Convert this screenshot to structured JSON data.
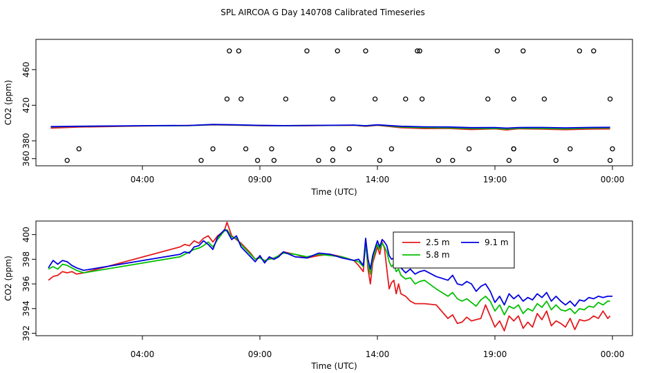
{
  "figure_title": "SPL AIRCOA G  Day 140708  Calibrated Timeseries",
  "chart_data": [
    {
      "type": "line",
      "panel": "top",
      "xlabel": "Time (UTC)",
      "ylabel": "CO2 (ppm)",
      "xlim": [
        0.0,
        24.0
      ],
      "ylim": [
        352,
        494
      ],
      "xticks": [
        {
          "x": 4,
          "label": "04:00"
        },
        {
          "x": 9,
          "label": "09:00"
        },
        {
          "x": 14,
          "label": "14:00"
        },
        {
          "x": 19,
          "label": "19:00"
        },
        {
          "x": 24,
          "label": "00:00"
        }
      ],
      "yticks": [
        360,
        380,
        420,
        460
      ],
      "series": [
        {
          "name": "2.5 m",
          "color": "#e41a1c",
          "x": [
            0.1,
            1.3,
            4,
            6,
            7.0,
            8,
            9,
            10,
            11,
            12,
            13,
            13.5,
            14,
            15,
            16,
            17,
            18,
            19,
            19.5,
            20,
            21,
            22,
            23,
            23.9
          ],
          "y": [
            394.3,
            395.5,
            396.8,
            397.2,
            398.0,
            397.6,
            397.0,
            396.9,
            397.0,
            397.3,
            397.5,
            396.4,
            397.5,
            394.8,
            393.8,
            394.0,
            392.7,
            393.5,
            392.3,
            393.6,
            393.2,
            392.6,
            393.3,
            393.4
          ]
        },
        {
          "name": "5.8 m",
          "color": "#00c000",
          "x": [
            0.1,
            1.3,
            4,
            6,
            7.0,
            8,
            9,
            10,
            11,
            12,
            13,
            13.5,
            14,
            15,
            16,
            17,
            18,
            19,
            19.5,
            20,
            21,
            22,
            23,
            23.9
          ],
          "y": [
            395.8,
            396.2,
            396.9,
            397.1,
            398.2,
            397.8,
            397.2,
            397.0,
            397.2,
            397.4,
            397.6,
            396.8,
            397.8,
            395.6,
            394.9,
            394.6,
            393.9,
            394.0,
            393.2,
            394.2,
            394.0,
            393.5,
            394.3,
            394.5
          ]
        },
        {
          "name": "9.1 m",
          "color": "#0000e0",
          "x": [
            0.1,
            1.3,
            4,
            6,
            7.0,
            8,
            9,
            10,
            11,
            12,
            13,
            13.5,
            14,
            15,
            16,
            17,
            18,
            19,
            19.5,
            20,
            21,
            22,
            23,
            23.9
          ],
          "y": [
            396.0,
            396.4,
            397.0,
            397.3,
            398.4,
            398.0,
            397.4,
            397.1,
            397.3,
            397.5,
            397.7,
            397.0,
            398.0,
            396.4,
            395.8,
            395.6,
            394.8,
            395.0,
            394.3,
            395.0,
            395.1,
            394.6,
            395.1,
            395.2
          ]
        }
      ],
      "outliers": {
        "x": [
          0.8,
          1.3,
          6.5,
          7.0,
          7.6,
          7.7,
          8.1,
          8.2,
          8.4,
          8.9,
          9.5,
          9.6,
          10.1,
          11.0,
          11.5,
          12.1,
          12.1,
          12.1,
          12.3,
          12.8,
          13.5,
          13.9,
          14.1,
          14.6,
          15.2,
          15.7,
          15.8,
          15.9,
          16.6,
          17.2,
          17.9,
          18.7,
          19.1,
          19.6,
          19.8,
          19.8,
          19.8,
          20.2,
          21.1,
          21.6,
          22.2,
          22.6,
          23.2,
          23.9,
          23.9,
          24.0
        ],
        "y": [
          358,
          371,
          358,
          371,
          427,
          481,
          481,
          427,
          371,
          358,
          371,
          358,
          427,
          481,
          358,
          371,
          358,
          427,
          481,
          371,
          481,
          427,
          358,
          371,
          427,
          481,
          481,
          427,
          358,
          358,
          371,
          427,
          481,
          358,
          371,
          371,
          427,
          481,
          427,
          358,
          371,
          481,
          481,
          358,
          427,
          371
        ]
      }
    },
    {
      "type": "line",
      "panel": "bottom",
      "xlabel": "Time (UTC)",
      "ylabel": "CO2 (ppm)",
      "xlim": [
        0.0,
        24.0
      ],
      "ylim": [
        391.8,
        401.1
      ],
      "xticks": [
        {
          "x": 4,
          "label": "04:00"
        },
        {
          "x": 9,
          "label": "09:00"
        },
        {
          "x": 14,
          "label": "14:00"
        },
        {
          "x": 19,
          "label": "19:00"
        },
        {
          "x": 24,
          "label": "00:00"
        }
      ],
      "yticks": [
        {
          "v": 392,
          "label": "392"
        },
        {
          "v": 394,
          "label": "394"
        },
        {
          "v": 396,
          "label": "396"
        },
        {
          "v": 398,
          "label": "398"
        },
        {
          "v": 400,
          "label": "400"
        }
      ],
      "legend": {
        "placement": "top-right-inset",
        "entries": [
          "2.5 m",
          "9.1 m",
          "5.8 m"
        ]
      },
      "series": [
        {
          "name": "2.5 m",
          "color": "#e41a1c",
          "x": [
            0.0,
            0.2,
            0.4,
            0.6,
            0.8,
            1.0,
            1.2,
            1.5,
            5.6,
            5.8,
            6.0,
            6.2,
            6.4,
            6.6,
            6.8,
            7.0,
            7.2,
            7.4,
            7.5,
            7.6,
            7.8,
            8.0,
            8.2,
            8.4,
            8.6,
            8.8,
            9.0,
            9.2,
            9.4,
            9.6,
            9.8,
            10.0,
            10.5,
            11.0,
            11.5,
            12.0,
            12.5,
            13.0,
            13.2,
            13.4,
            13.5,
            13.6,
            13.7,
            13.8,
            14.0,
            14.1,
            14.2,
            14.3,
            14.4,
            14.5,
            14.6,
            14.7,
            14.8,
            14.9,
            15.0,
            15.2,
            15.4,
            15.6,
            15.8,
            16.0,
            16.5,
            17.0,
            17.2,
            17.4,
            17.6,
            17.8,
            18.0,
            18.2,
            18.4,
            18.6,
            18.8,
            19.0,
            19.2,
            19.4,
            19.6,
            19.8,
            20.0,
            20.2,
            20.4,
            20.6,
            20.8,
            21.0,
            21.2,
            21.4,
            21.6,
            21.8,
            22.0,
            22.2,
            22.4,
            22.6,
            22.8,
            23.0,
            23.2,
            23.4,
            23.6,
            23.8,
            23.9
          ],
          "y": [
            396.3,
            396.6,
            396.7,
            397.0,
            396.9,
            397.0,
            396.8,
            396.9,
            399.0,
            399.2,
            399.1,
            399.5,
            399.3,
            399.7,
            399.9,
            399.4,
            399.9,
            400.2,
            400.4,
            401.0,
            399.9,
            399.6,
            399.3,
            398.9,
            398.5,
            398.0,
            398.2,
            397.8,
            398.1,
            398.0,
            398.3,
            398.6,
            398.4,
            398.1,
            398.3,
            398.4,
            398.2,
            397.9,
            397.5,
            397.0,
            399.5,
            397.2,
            396.0,
            397.7,
            399.0,
            398.4,
            399.4,
            398.9,
            397.2,
            395.6,
            396.1,
            396.3,
            395.2,
            396.0,
            395.2,
            395.0,
            394.6,
            394.4,
            394.4,
            394.4,
            394.3,
            393.2,
            393.5,
            392.8,
            392.9,
            393.3,
            393.0,
            393.1,
            393.2,
            394.3,
            393.4,
            392.5,
            393.0,
            392.2,
            393.4,
            393.0,
            393.4,
            392.4,
            392.9,
            392.5,
            393.6,
            393.1,
            393.8,
            392.6,
            393.0,
            392.8,
            392.5,
            393.2,
            392.3,
            393.1,
            393.0,
            393.1,
            393.4,
            393.2,
            393.8,
            393.2,
            393.4
          ]
        },
        {
          "name": "5.8 m",
          "color": "#00c000",
          "x": [
            0.0,
            0.2,
            0.4,
            0.6,
            0.8,
            1.0,
            1.2,
            1.5,
            5.6,
            5.8,
            6.0,
            6.2,
            6.4,
            6.6,
            6.8,
            7.0,
            7.2,
            7.4,
            7.5,
            7.6,
            7.8,
            8.0,
            8.2,
            8.4,
            8.6,
            8.8,
            9.0,
            9.2,
            9.4,
            9.6,
            9.8,
            10.0,
            10.5,
            11.0,
            11.5,
            12.0,
            12.5,
            13.0,
            13.2,
            13.4,
            13.5,
            13.6,
            13.7,
            13.8,
            14.0,
            14.1,
            14.2,
            14.3,
            14.4,
            14.5,
            14.6,
            14.7,
            14.8,
            14.9,
            15.0,
            15.2,
            15.4,
            15.6,
            15.8,
            16.0,
            16.5,
            17.0,
            17.2,
            17.4,
            17.6,
            17.8,
            18.0,
            18.2,
            18.4,
            18.6,
            18.8,
            19.0,
            19.2,
            19.4,
            19.6,
            19.8,
            20.0,
            20.2,
            20.4,
            20.6,
            20.8,
            21.0,
            21.2,
            21.4,
            21.6,
            21.8,
            22.0,
            22.2,
            22.4,
            22.6,
            22.8,
            23.0,
            23.2,
            23.4,
            23.6,
            23.8,
            23.9
          ],
          "y": [
            397.2,
            397.4,
            397.2,
            397.6,
            397.5,
            397.3,
            397.1,
            396.9,
            398.2,
            398.4,
            398.6,
            398.8,
            398.9,
            399.1,
            399.4,
            399.0,
            399.6,
            400.1,
            400.3,
            400.4,
            399.8,
            399.7,
            399.2,
            398.8,
            398.4,
            398.0,
            398.1,
            397.9,
            398.0,
            398.1,
            398.3,
            398.5,
            398.4,
            398.2,
            398.4,
            398.3,
            398.2,
            397.9,
            397.8,
            397.4,
            399.2,
            397.6,
            396.8,
            398.0,
            399.2,
            398.8,
            399.3,
            399.0,
            398.6,
            397.8,
            397.4,
            397.6,
            397.0,
            397.2,
            396.7,
            396.4,
            396.5,
            396.0,
            396.2,
            396.3,
            395.6,
            395.0,
            395.3,
            394.8,
            394.6,
            394.8,
            394.5,
            394.2,
            394.7,
            395.0,
            394.6,
            393.8,
            394.3,
            393.5,
            394.2,
            394.0,
            394.3,
            393.6,
            394.0,
            393.8,
            394.4,
            394.1,
            394.6,
            393.9,
            394.3,
            393.9,
            393.8,
            394.0,
            393.6,
            394.0,
            393.9,
            394.2,
            394.1,
            394.5,
            394.3,
            394.6,
            394.6
          ]
        },
        {
          "name": "9.1 m",
          "color": "#0000e0",
          "x": [
            0.0,
            0.2,
            0.4,
            0.6,
            0.8,
            1.0,
            1.2,
            1.5,
            5.6,
            5.8,
            6.0,
            6.2,
            6.4,
            6.6,
            6.8,
            7.0,
            7.2,
            7.4,
            7.5,
            7.6,
            7.8,
            8.0,
            8.2,
            8.4,
            8.6,
            8.8,
            9.0,
            9.2,
            9.4,
            9.6,
            9.8,
            10.0,
            10.5,
            11.0,
            11.5,
            12.0,
            12.5,
            13.0,
            13.2,
            13.4,
            13.5,
            13.6,
            13.7,
            13.8,
            14.0,
            14.1,
            14.2,
            14.3,
            14.4,
            14.5,
            14.6,
            14.7,
            14.8,
            14.9,
            15.0,
            15.2,
            15.4,
            15.6,
            15.8,
            16.0,
            16.5,
            17.0,
            17.2,
            17.4,
            17.6,
            17.8,
            18.0,
            18.2,
            18.4,
            18.6,
            18.8,
            19.0,
            19.2,
            19.4,
            19.6,
            19.8,
            20.0,
            20.2,
            20.4,
            20.6,
            20.8,
            21.0,
            21.2,
            21.4,
            21.6,
            21.8,
            22.0,
            22.2,
            22.4,
            22.6,
            22.8,
            23.0,
            23.2,
            23.4,
            23.6,
            23.8,
            24.0
          ],
          "y": [
            397.3,
            397.9,
            397.6,
            397.9,
            397.8,
            397.5,
            397.3,
            397.1,
            398.4,
            398.6,
            398.5,
            399.0,
            399.1,
            399.5,
            399.2,
            398.8,
            399.8,
            400.2,
            400.4,
            400.3,
            399.6,
            399.9,
            399.0,
            398.6,
            398.2,
            397.8,
            398.3,
            397.7,
            398.2,
            398.0,
            398.2,
            398.6,
            398.2,
            398.1,
            398.5,
            398.4,
            398.1,
            397.9,
            398.0,
            397.5,
            399.7,
            398.0,
            397.2,
            398.3,
            399.5,
            399.0,
            399.6,
            399.4,
            399.1,
            398.3,
            398.0,
            398.1,
            397.6,
            397.8,
            397.3,
            396.9,
            397.2,
            396.8,
            397.0,
            397.1,
            396.6,
            396.3,
            396.7,
            396.0,
            395.9,
            396.2,
            396.0,
            395.4,
            395.8,
            396.0,
            395.4,
            394.5,
            395.0,
            394.3,
            395.2,
            394.8,
            395.1,
            394.6,
            394.9,
            394.7,
            395.2,
            394.9,
            395.3,
            394.6,
            395.0,
            394.6,
            394.3,
            394.6,
            394.2,
            394.7,
            394.6,
            394.9,
            394.8,
            395.0,
            394.9,
            395.0,
            395.0
          ]
        }
      ]
    }
  ]
}
